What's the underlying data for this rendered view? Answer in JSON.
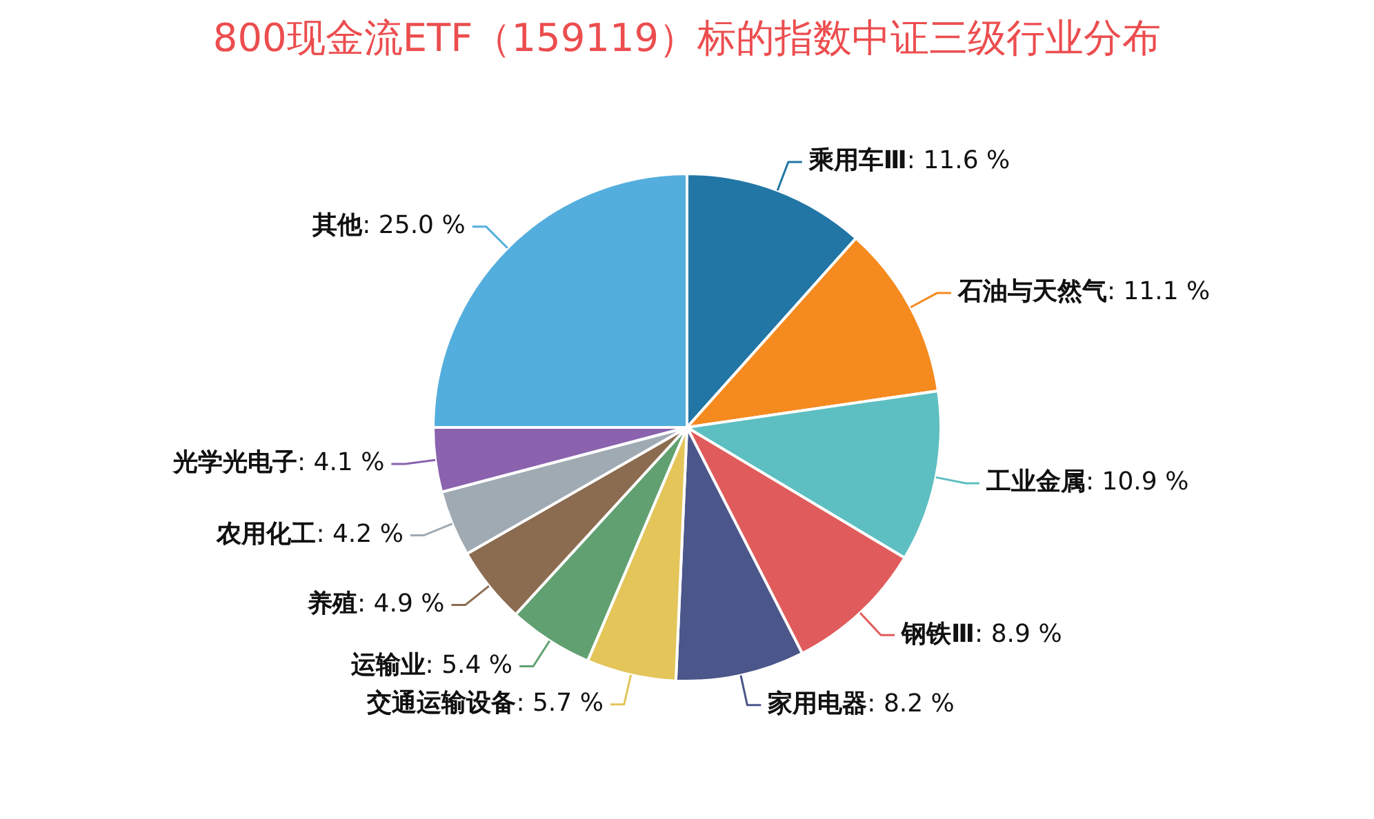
{
  "chart_data": {
    "type": "pie",
    "title": "800现金流ETF（159119）标的指数中证三级行业分布",
    "categories": [
      "乘用车Ⅲ",
      "石油与天然气",
      "工业金属",
      "钢铁Ⅲ",
      "家用电器",
      "交通运输设备",
      "运输业",
      "养殖",
      "农用化工",
      "光学光电子",
      "其他"
    ],
    "values": [
      11.6,
      11.1,
      10.9,
      8.9,
      8.2,
      5.7,
      5.4,
      4.9,
      4.2,
      4.1,
      25.0
    ],
    "value_labels": [
      ": 11.6 %",
      ": 11.1 %",
      ": 10.9 %",
      ": 8.9 %",
      ": 8.2 %",
      ": 5.7 %",
      ": 5.4 %",
      ": 4.9 %",
      ": 4.2 %",
      ": 4.1 %",
      ": 25.0 %"
    ],
    "colors": [
      "#2176a5",
      "#f58a1f",
      "#5dbfc1",
      "#e05c5c",
      "#4b568a",
      "#e3c55a",
      "#61a070",
      "#8b6c50",
      "#a0aab3",
      "#8a62ad",
      "#54aedd"
    ],
    "legend": false
  }
}
